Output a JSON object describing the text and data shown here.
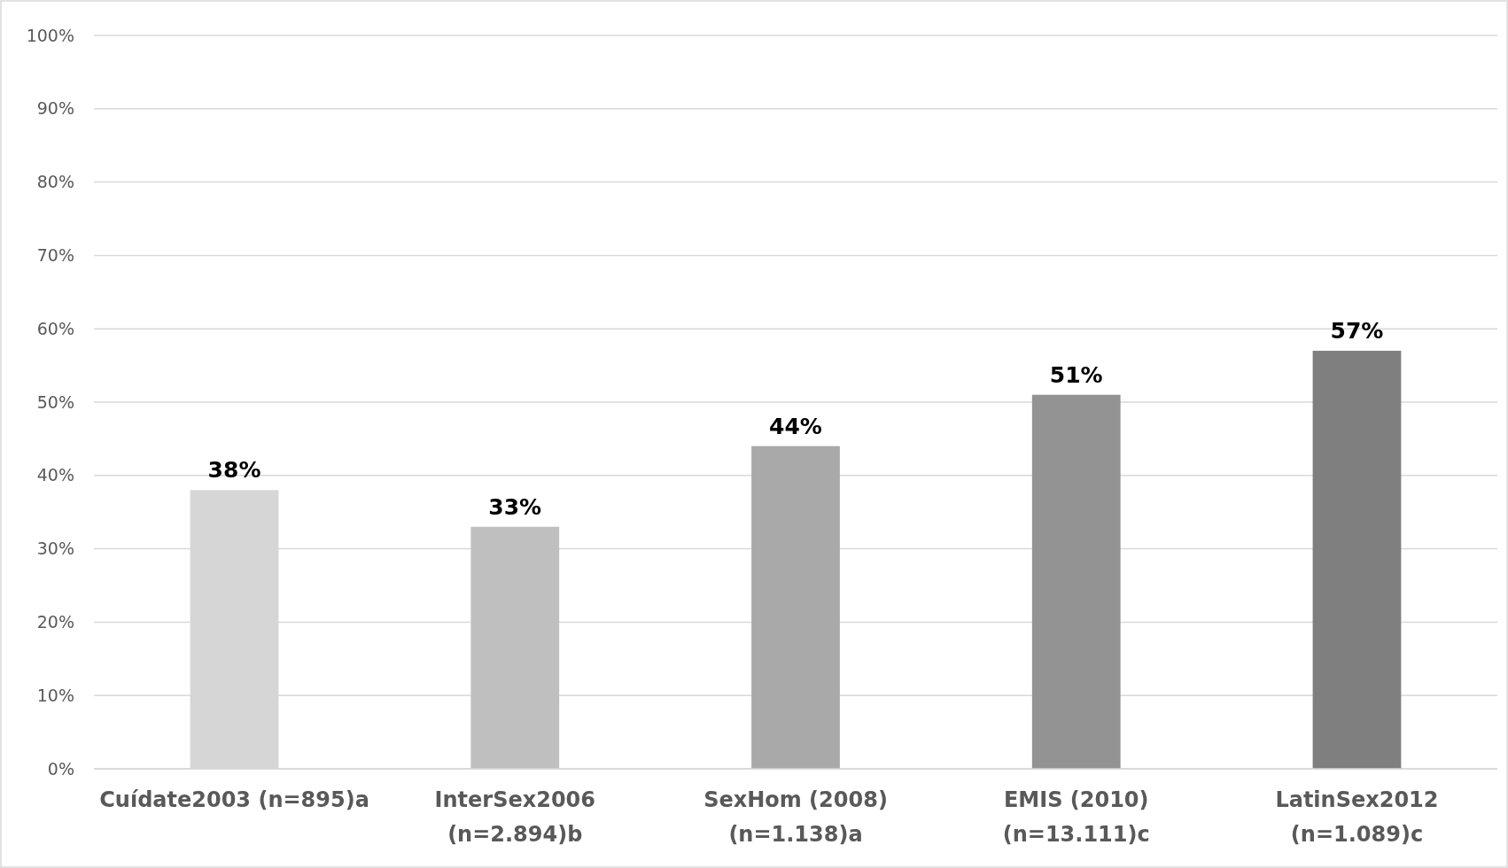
{
  "chart_data": {
    "type": "bar",
    "categories": [
      "Cuídate2003 (n=895)a",
      "InterSex2006\n(n=2.894)b",
      "SexHom (2008)\n(n=1.138)a",
      "EMIS (2010)\n(n=13.111)c",
      "LatinSex2012\n(n=1.089)c"
    ],
    "values": [
      38,
      33,
      44,
      51,
      57
    ],
    "colors": [
      "#d6d6d6",
      "#bfbfbf",
      "#a9a9a9",
      "#939393",
      "#7f7f7f"
    ],
    "value_labels": [
      "38%",
      "33%",
      "44%",
      "51%",
      "57%"
    ],
    "ylim": [
      0,
      100
    ],
    "yticks": [
      {
        "value": 0,
        "label": "0%"
      },
      {
        "value": 10,
        "label": "10%"
      },
      {
        "value": 20,
        "label": "20%"
      },
      {
        "value": 30,
        "label": "30%"
      },
      {
        "value": 40,
        "label": "40%"
      },
      {
        "value": 50,
        "label": "50%"
      },
      {
        "value": 60,
        "label": "60%"
      },
      {
        "value": 70,
        "label": "70%"
      },
      {
        "value": 80,
        "label": "80%"
      },
      {
        "value": 90,
        "label": "90%"
      },
      {
        "value": 100,
        "label": "100%"
      }
    ],
    "grid": "y"
  }
}
